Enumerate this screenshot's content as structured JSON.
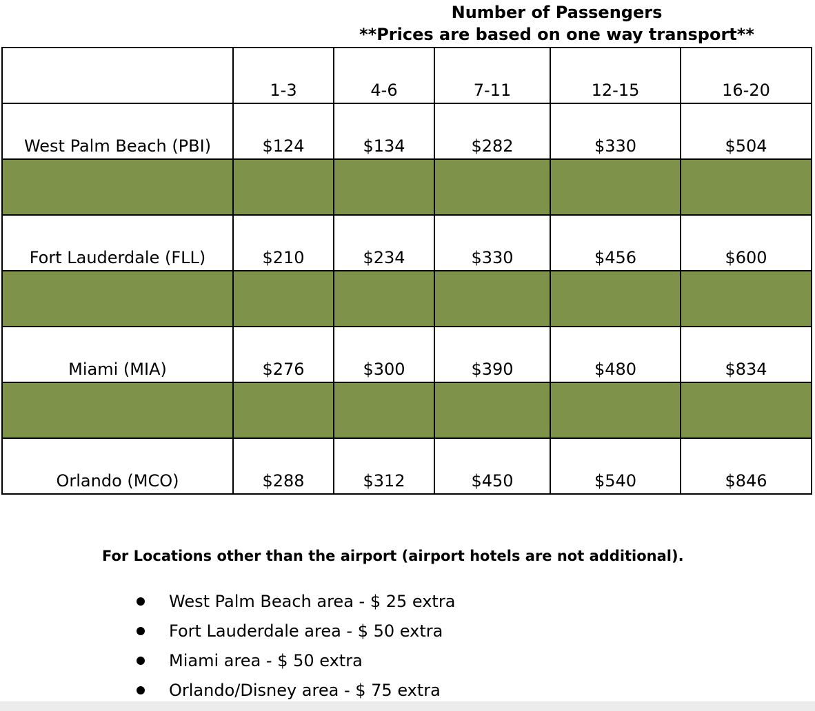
{
  "heading": {
    "line1": "Number of Passengers",
    "line2": "**Prices are based on one way transport**"
  },
  "table": {
    "columns": [
      "1-3",
      "4-6",
      "7-11",
      "12-15",
      "16-20"
    ],
    "rows": [
      {
        "label": "West Palm Beach (PBI)",
        "prices": [
          "$124",
          "$134",
          "$282",
          "$330",
          "$504"
        ]
      },
      {
        "label": "Fort Lauderdale (FLL)",
        "prices": [
          "$210",
          "$234",
          "$330",
          "$456",
          "$600"
        ]
      },
      {
        "label": "Miami (MIA)",
        "prices": [
          "$276",
          "$300",
          "$390",
          "$480",
          "$834"
        ]
      },
      {
        "label": "Orlando (MCO)",
        "prices": [
          "$288",
          "$312",
          "$450",
          "$540",
          "$846"
        ]
      }
    ],
    "spacer_color": "#7f9249"
  },
  "footnote": "For Locations other than the airport (airport hotels are not additional).",
  "surcharges": [
    "West Palm Beach area - $ 25 extra",
    "Fort Lauderdale area - $ 50 extra",
    "Miami area - $ 50 extra",
    "Orlando/Disney area - $ 75 extra"
  ]
}
